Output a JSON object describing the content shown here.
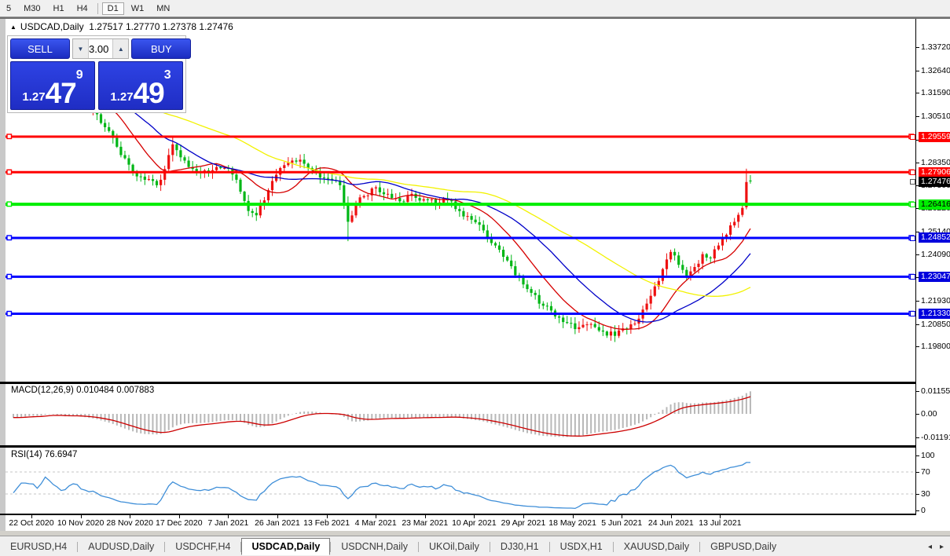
{
  "toolbar": {
    "timeframes": [
      "5",
      "M30",
      "H1",
      "H4",
      "D1",
      "W1",
      "MN"
    ],
    "active": "D1"
  },
  "chart": {
    "title": "USDCAD,Daily",
    "ohlc_text": "1.27517 1.27770 1.27378 1.27476",
    "collapse_icon": "▲",
    "trade_panel": {
      "sell_label": "SELL",
      "buy_label": "BUY",
      "volume": "3.00",
      "down_arrow_icon": "▼",
      "up_arrow_icon": "▲",
      "sell_quote": {
        "small": "1.27",
        "big": "47",
        "sup": "9"
      },
      "buy_quote": {
        "small": "1.27",
        "big": "49",
        "sup": "3"
      }
    }
  },
  "chart_data": {
    "type": "candlestick",
    "symbol": "USDCAD",
    "timeframe": "Daily",
    "num_candles": 186,
    "seed": 20210713,
    "price_anchors": [
      [
        0,
        1.3145
      ],
      [
        3,
        1.319
      ],
      [
        6,
        1.316
      ],
      [
        8,
        1.323
      ],
      [
        10,
        1.318
      ],
      [
        12,
        1.312
      ],
      [
        15,
        1.317
      ],
      [
        18,
        1.3105
      ],
      [
        21,
        1.306
      ],
      [
        23,
        1.3
      ],
      [
        25,
        1.295
      ],
      [
        27,
        1.287
      ],
      [
        30,
        1.2795
      ],
      [
        33,
        1.2755
      ],
      [
        36,
        1.273
      ],
      [
        38,
        1.2805
      ],
      [
        40,
        1.292
      ],
      [
        42,
        1.286
      ],
      [
        44,
        1.2815
      ],
      [
        47,
        1.279
      ],
      [
        50,
        1.28
      ],
      [
        53,
        1.281
      ],
      [
        55,
        1.278
      ],
      [
        57,
        1.27
      ],
      [
        59,
        1.261
      ],
      [
        61,
        1.259
      ],
      [
        63,
        1.266
      ],
      [
        65,
        1.275
      ],
      [
        67,
        1.281
      ],
      [
        70,
        1.2845
      ],
      [
        73,
        1.283
      ],
      [
        76,
        1.279
      ],
      [
        79,
        1.276
      ],
      [
        82,
        1.273
      ],
      [
        84,
        1.256
      ],
      [
        86,
        1.264
      ],
      [
        88,
        1.268
      ],
      [
        91,
        1.272
      ],
      [
        94,
        1.269
      ],
      [
        97,
        1.2655
      ],
      [
        100,
        1.269
      ],
      [
        103,
        1.2665
      ],
      [
        106,
        1.264
      ],
      [
        109,
        1.266
      ],
      [
        112,
        1.261
      ],
      [
        115,
        1.257
      ],
      [
        118,
        1.252
      ],
      [
        121,
        1.245
      ],
      [
        124,
        1.238
      ],
      [
        127,
        1.23
      ],
      [
        130,
        1.223
      ],
      [
        133,
        1.217
      ],
      [
        136,
        1.212
      ],
      [
        139,
        1.209
      ],
      [
        142,
        1.207
      ],
      [
        145,
        1.2085
      ],
      [
        148,
        1.205
      ],
      [
        151,
        1.203
      ],
      [
        154,
        1.206
      ],
      [
        157,
        1.211
      ],
      [
        159,
        1.218
      ],
      [
        161,
        1.226
      ],
      [
        163,
        1.234
      ],
      [
        165,
        1.242
      ],
      [
        167,
        1.236
      ],
      [
        169,
        1.2305
      ],
      [
        171,
        1.235
      ],
      [
        173,
        1.241
      ],
      [
        175,
        1.239
      ],
      [
        177,
        1.245
      ],
      [
        179,
        1.25
      ],
      [
        181,
        1.256
      ],
      [
        183,
        1.2625
      ],
      [
        184,
        1.2745
      ],
      [
        185,
        1.27476
      ]
    ],
    "candle_overrides": {
      "40": {
        "h": 1.2956
      },
      "84": {
        "l": 1.247
      },
      "184": {
        "o": 1.2628,
        "h": 1.2807,
        "l": 1.2618,
        "c": 1.2745
      },
      "185": {
        "o": 1.27517,
        "h": 1.2777,
        "l": 1.27378,
        "c": 1.27476
      }
    },
    "last_ohlc": {
      "open": 1.27517,
      "high": 1.2777,
      "low": 1.27378,
      "close": 1.27476
    },
    "colors": {
      "up": "#ee1010",
      "down": "#00b616",
      "macd_hist": "#b8b8b8",
      "macd_signal": "#cc0000",
      "rsi_line": "#3e8ed8",
      "level_dash": "#c6c6c6"
    },
    "moving_averages": [
      {
        "name": "fast-ma",
        "period": 13,
        "color": "#d60000"
      },
      {
        "name": "mid-ma",
        "period": 28,
        "color": "#0000c8"
      },
      {
        "name": "slow-ma",
        "period": 55,
        "color": "#f2f200"
      }
    ],
    "h_lines": [
      {
        "price": 1.29559,
        "color": "#ff0000",
        "width": 3
      },
      {
        "price": 1.27906,
        "color": "#ff0000",
        "width": 3
      },
      {
        "price": 1.26416,
        "color": "#00ee00",
        "width": 4
      },
      {
        "price": 1.24852,
        "color": "#0000ff",
        "width": 3
      },
      {
        "price": 1.23047,
        "color": "#0000ff",
        "width": 3
      },
      {
        "price": 1.2133,
        "color": "#0000ff",
        "width": 3
      }
    ],
    "price_axis": {
      "plain_labels": [
        "1.33720",
        "1.32640",
        "1.31590",
        "1.30510",
        "1.29430",
        "1.28350",
        "1.27300",
        "1.26220",
        "1.25140",
        "1.24090",
        "1.23010",
        "1.21930",
        "1.20850",
        "1.19800"
      ],
      "badges": [
        {
          "text": "1.29559",
          "bg": "#ff0000",
          "fg": "#ffffff"
        },
        {
          "text": "1.27906",
          "bg": "#ff0000",
          "fg": "#ffffff"
        },
        {
          "text": "1.27476",
          "bg": "#000000",
          "fg": "#ffffff"
        },
        {
          "text": "1.26416",
          "bg": "#00ee00",
          "fg": "#000000"
        },
        {
          "text": "1.24852",
          "bg": "#0000dd",
          "fg": "#ffffff"
        },
        {
          "text": "1.23047",
          "bg": "#0000dd",
          "fg": "#ffffff"
        },
        {
          "text": "1.21330",
          "bg": "#0000dd",
          "fg": "#ffffff"
        }
      ]
    },
    "date_labels": [
      "22 Oct 2020",
      "10 Nov 2020",
      "28 Nov 2020",
      "17 Dec 2020",
      "7 Jan 2021",
      "26 Jan 2021",
      "13 Feb 2021",
      "4 Mar 2021",
      "23 Mar 2021",
      "10 Apr 2021",
      "29 Apr 2021",
      "18 May 2021",
      "5 Jun 2021",
      "24 Jun 2021",
      "13 Jul 2021"
    ],
    "macd": {
      "label": "MACD(12,26,9)",
      "values_text": "0.010484 0.007883",
      "fast": 12,
      "slow": 26,
      "signal": 9,
      "axis": [
        {
          "label": "0.011551",
          "value": 0.011551
        },
        {
          "label": "0.00",
          "value": 0
        },
        {
          "label": "-0.011914",
          "value": -0.011914
        }
      ]
    },
    "rsi": {
      "label": "RSI(14)",
      "value_text": "76.6947",
      "period": 14,
      "levels": [
        70,
        30
      ],
      "axis": [
        {
          "label": "100",
          "value": 100
        },
        {
          "label": "70",
          "value": 70
        },
        {
          "label": "30",
          "value": 30
        },
        {
          "label": "0",
          "value": 0
        }
      ]
    }
  },
  "tabbar": {
    "tabs": [
      "EURUSD,H4",
      "AUDUSD,Daily",
      "USDCHF,H4",
      "USDCAD,Daily",
      "USDCNH,Daily",
      "UKOil,Daily",
      "DJ30,H1",
      "USDX,H1",
      "XAUUSD,Daily",
      "GBPUSD,Daily"
    ],
    "active": "USDCAD,Daily",
    "left_arrow_icon": "◂",
    "right_arrow_icon": "▸"
  }
}
